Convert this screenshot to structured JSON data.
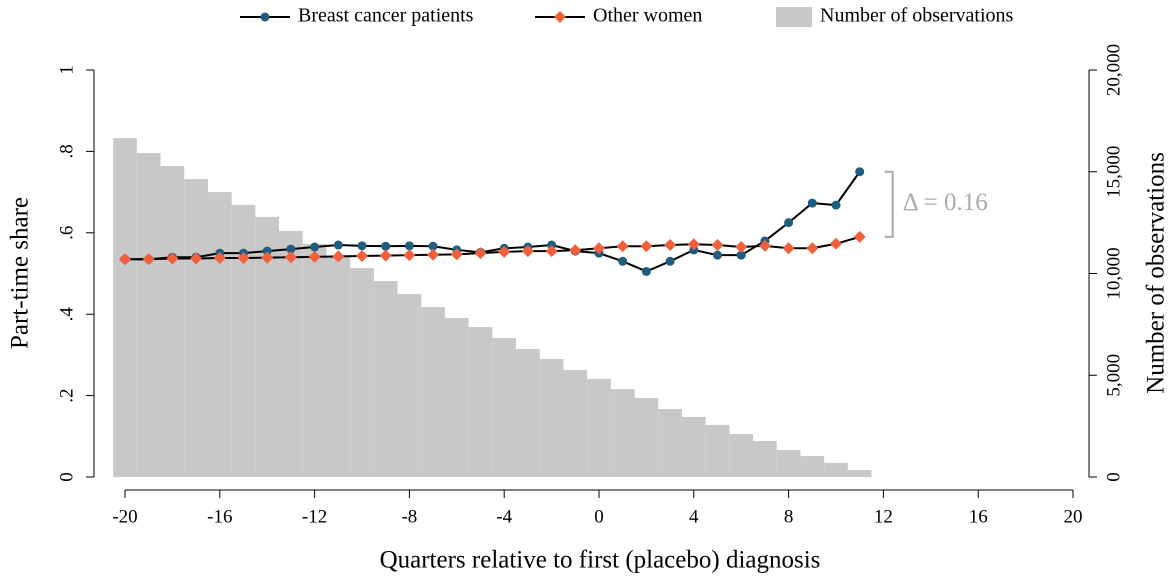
{
  "chart_data": {
    "type": "line",
    "x_label": "Quarters relative to first (placebo) diagnosis",
    "y_label": "Part-time share",
    "y2_label": "Number of observations",
    "annotation": "Δ = 0.16",
    "x": [
      -20,
      -19,
      -18,
      -17,
      -16,
      -15,
      -14,
      -13,
      -12,
      -11,
      -10,
      -9,
      -8,
      -7,
      -6,
      -5,
      -4,
      -3,
      -2,
      -1,
      0,
      1,
      2,
      3,
      4,
      5,
      6,
      7,
      8,
      9,
      10,
      11
    ],
    "series": [
      {
        "name": "Breast cancer patients",
        "color": "#215d7e",
        "marker": "circle",
        "values": [
          0.535,
          0.535,
          0.54,
          0.54,
          0.55,
          0.55,
          0.555,
          0.56,
          0.565,
          0.57,
          0.568,
          0.567,
          0.568,
          0.567,
          0.558,
          0.552,
          0.562,
          0.565,
          0.57,
          0.555,
          0.55,
          0.53,
          0.505,
          0.53,
          0.558,
          0.545,
          0.545,
          0.58,
          0.625,
          0.673,
          0.668,
          0.75
        ]
      },
      {
        "name": "Other women",
        "color": "#f0603c",
        "marker": "diamond",
        "values": [
          0.535,
          0.535,
          0.537,
          0.537,
          0.538,
          0.538,
          0.539,
          0.54,
          0.541,
          0.542,
          0.543,
          0.544,
          0.545,
          0.546,
          0.547,
          0.55,
          0.553,
          0.555,
          0.555,
          0.557,
          0.562,
          0.567,
          0.567,
          0.57,
          0.572,
          0.57,
          0.565,
          0.568,
          0.562,
          0.562,
          0.573,
          0.59
        ]
      },
      {
        "name": "Number of observations",
        "color": "#c8c8c8",
        "type": "bar",
        "axis": "y2",
        "values": [
          16650,
          15920,
          15280,
          14640,
          14000,
          13370,
          12780,
          12090,
          11450,
          10860,
          10270,
          9630,
          8990,
          8350,
          7810,
          7370,
          6830,
          6290,
          5800,
          5260,
          4820,
          4320,
          3880,
          3340,
          2950,
          2560,
          2110,
          1770,
          1330,
          1030,
          690,
          340
        ]
      }
    ],
    "xlim": [
      -20,
      20
    ],
    "xticks": [
      -20,
      -16,
      -12,
      -8,
      -4,
      0,
      4,
      8,
      12,
      16,
      20
    ],
    "ylim": [
      0,
      1
    ],
    "yticks": [
      0,
      {
        "value": 0.2,
        "label": ".2"
      },
      {
        "value": 0.4,
        "label": ".4"
      },
      {
        "value": 0.6,
        "label": ".6"
      },
      {
        "value": 0.8,
        "label": ".8"
      },
      1
    ],
    "y2lim": [
      0,
      20000
    ],
    "y2ticks": [
      0,
      {
        "value": 5000,
        "label": "5,000"
      },
      {
        "value": 10000,
        "label": "10,000"
      },
      {
        "value": 15000,
        "label": "15,000"
      },
      {
        "value": 20000,
        "label": "20,000"
      }
    ],
    "legend": "top"
  }
}
